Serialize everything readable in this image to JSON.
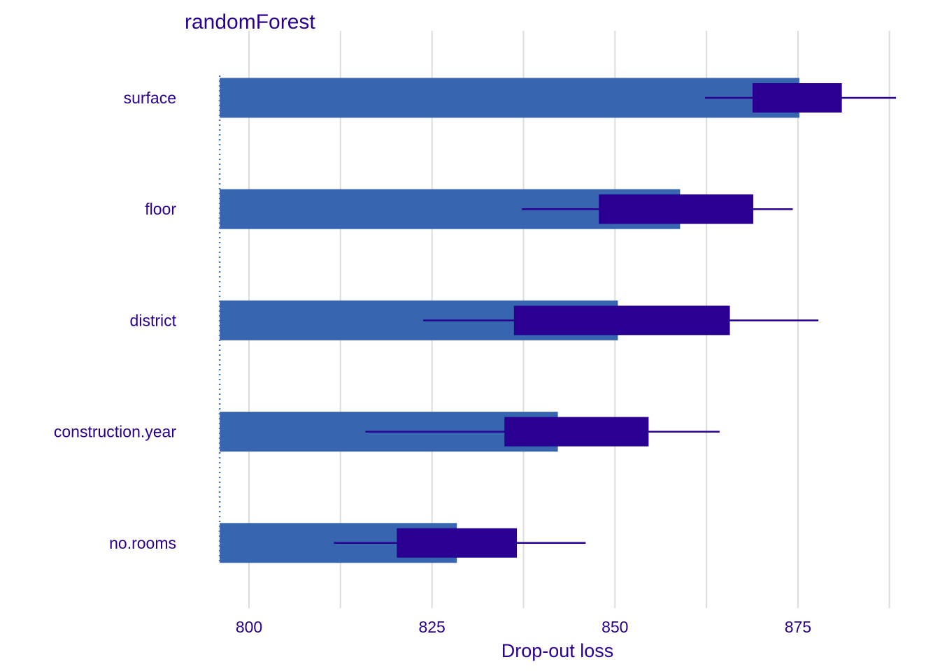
{
  "chart_data": {
    "type": "bar",
    "title": "randomForest",
    "xlabel": "Drop-out loss",
    "ylabel": "",
    "baseline": 796,
    "xlim": [
      796,
      888
    ],
    "xticks": [
      800,
      825,
      850,
      875
    ],
    "grid": "vertical",
    "categories": [
      "surface",
      "floor",
      "district",
      "construction.year",
      "no.rooms"
    ],
    "series": [
      {
        "values": [
          875.2,
          858.9,
          850.4,
          842.2,
          828.4
        ]
      }
    ],
    "boxplots": [
      {
        "category": "surface",
        "min": 862.3,
        "q1": 868.8,
        "q3": 881.0,
        "max": 888.4
      },
      {
        "category": "floor",
        "min": 837.3,
        "q1": 847.8,
        "q3": 868.9,
        "max": 874.3
      },
      {
        "category": "district",
        "min": 823.8,
        "q1": 836.2,
        "q3": 865.7,
        "max": 877.8
      },
      {
        "category": "construction.year",
        "min": 815.9,
        "q1": 834.9,
        "q3": 854.6,
        "max": 864.3
      },
      {
        "category": "no.rooms",
        "min": 811.6,
        "q1": 820.2,
        "q3": 836.6,
        "max": 846.0
      }
    ],
    "colors": {
      "bar": "#3765b0",
      "box": "#2a0092",
      "text": "#2a0092",
      "grid": "#dcdcdc",
      "baseline": "#4372c4"
    }
  }
}
